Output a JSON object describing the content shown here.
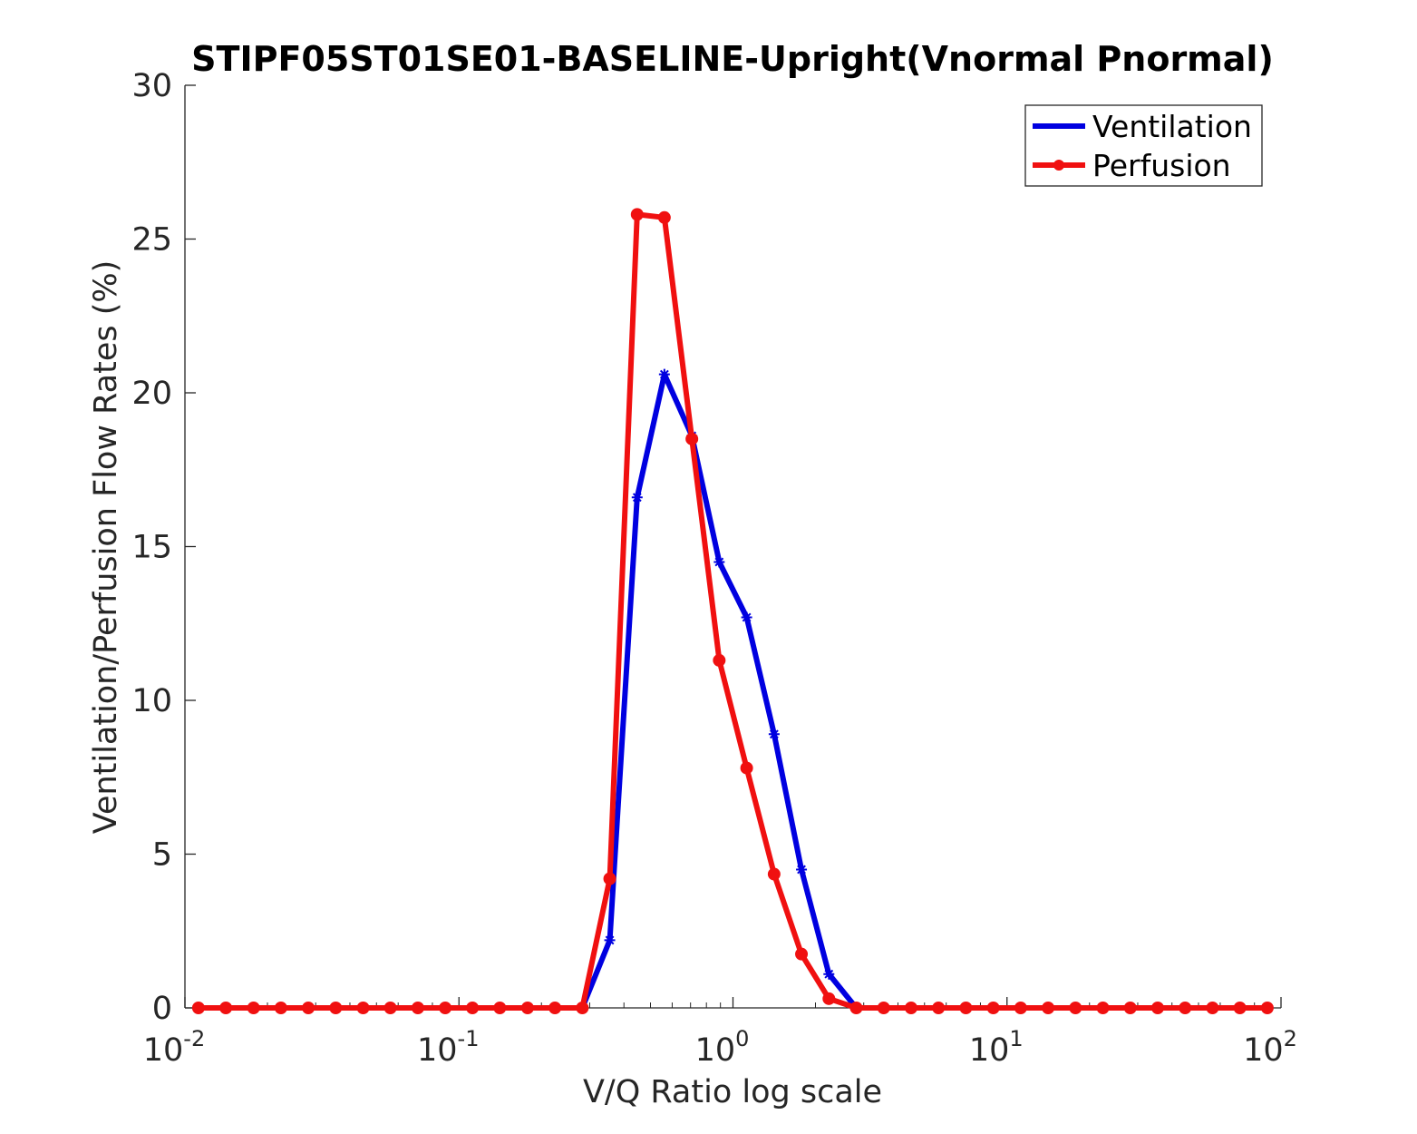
{
  "chart_data": {
    "type": "line",
    "title": "STIPF05ST01SE01-BASELINE-Upright(Vnormal Pnormal)",
    "xlabel": "V/Q Ratio log scale",
    "ylabel": "Ventilation/Perfusion Flow Rates (%)",
    "xscale": "log",
    "xlim": [
      0.01,
      100
    ],
    "ylim": [
      0,
      30
    ],
    "x_ticks": [
      {
        "base": "10",
        "exp": "-2",
        "value": 0.01
      },
      {
        "base": "10",
        "exp": "-1",
        "value": 0.1
      },
      {
        "base": "10",
        "exp": "0",
        "value": 1
      },
      {
        "base": "10",
        "exp": "1",
        "value": 10
      },
      {
        "base": "10",
        "exp": "2",
        "value": 100
      }
    ],
    "y_ticks": [
      "0",
      "5",
      "10",
      "15",
      "20",
      "25",
      "30"
    ],
    "legend_position": "top-right",
    "x": [
      0.0112,
      0.0141,
      0.0178,
      0.0224,
      0.0282,
      0.0355,
      0.0447,
      0.0562,
      0.0708,
      0.0891,
      0.112,
      0.141,
      0.178,
      0.224,
      0.282,
      0.355,
      0.447,
      0.562,
      0.708,
      0.891,
      1.122,
      1.413,
      1.778,
      2.239,
      2.818,
      3.548,
      4.467,
      5.623,
      7.079,
      8.913,
      11.22,
      14.13,
      17.78,
      22.39,
      28.18,
      35.48,
      44.67,
      56.23,
      70.79,
      89.13
    ],
    "series": [
      {
        "name": "Ventilation",
        "color": "#0000e0",
        "marker": "star",
        "values": [
          0,
          0,
          0,
          0,
          0,
          0,
          0,
          0,
          0,
          0,
          0,
          0,
          0,
          0,
          0,
          2.2,
          16.6,
          20.6,
          18.6,
          14.5,
          12.7,
          8.9,
          4.5,
          1.1,
          0.0,
          0,
          0,
          0,
          0,
          0,
          0,
          0,
          0,
          0,
          0,
          0,
          0,
          0,
          0,
          0
        ]
      },
      {
        "name": "Perfusion",
        "color": "#f01010",
        "marker": "circle",
        "values": [
          0,
          0,
          0,
          0,
          0,
          0,
          0,
          0,
          0,
          0,
          0,
          0,
          0,
          0,
          0,
          4.2,
          25.8,
          25.7,
          18.5,
          11.3,
          7.8,
          4.35,
          1.75,
          0.3,
          0.0,
          0,
          0,
          0,
          0,
          0,
          0,
          0,
          0,
          0,
          0,
          0,
          0,
          0,
          0,
          0
        ]
      }
    ]
  }
}
